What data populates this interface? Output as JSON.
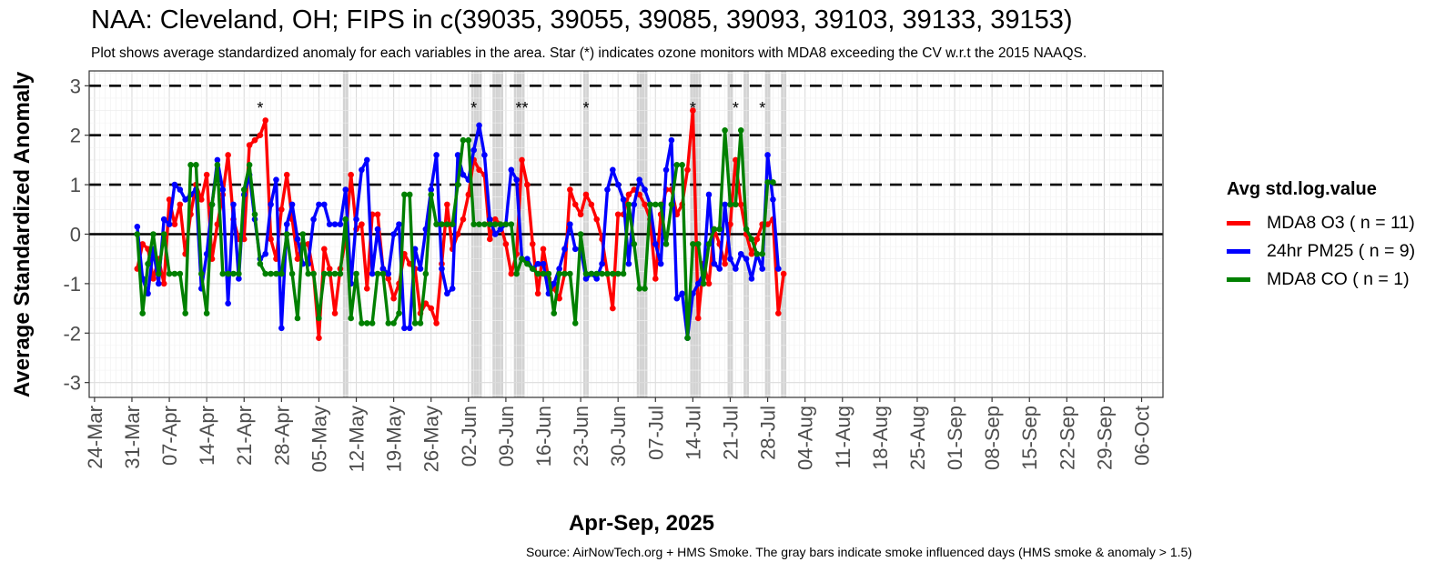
{
  "chart_data": {
    "type": "line",
    "title": "NAA: Cleveland, OH; FIPS in c(39035, 39055, 39085, 39093, 39103, 39133, 39153)",
    "subtitle": "Plot shows average standardized anomaly for each variables in the area. Star (*) indicates ozone monitors with MDA8 exceeding the CV w.r.t the 2015 NAAQS.",
    "xlabel": "Apr-Sep, 2025",
    "ylabel": "Average Standardized Anomaly",
    "caption": "Source: AirNowTech.org + HMS Smoke. The gray bars indicate smoke influenced days (HMS smoke & anomaly > 1.5)",
    "xlim": [
      "2025-03-23",
      "2025-10-10"
    ],
    "ylim": [
      -3.3,
      3.3
    ],
    "x_ticks": [
      "2025-03-24",
      "2025-03-31",
      "2025-04-07",
      "2025-04-14",
      "2025-04-21",
      "2025-04-28",
      "2025-05-05",
      "2025-05-12",
      "2025-05-19",
      "2025-05-26",
      "2025-06-02",
      "2025-06-09",
      "2025-06-16",
      "2025-06-23",
      "2025-06-30",
      "2025-07-07",
      "2025-07-14",
      "2025-07-21",
      "2025-07-28",
      "2025-08-04",
      "2025-08-11",
      "2025-08-18",
      "2025-08-25",
      "2025-09-01",
      "2025-09-08",
      "2025-09-15",
      "2025-09-22",
      "2025-09-29",
      "2025-10-06"
    ],
    "x_tick_labels": [
      "24-Mar",
      "31-Mar",
      "07-Apr",
      "14-Apr",
      "21-Apr",
      "28-Apr",
      "05-May",
      "12-May",
      "19-May",
      "26-May",
      "02-Jun",
      "09-Jun",
      "16-Jun",
      "23-Jun",
      "30-Jun",
      "07-Jul",
      "14-Jul",
      "21-Jul",
      "28-Jul",
      "04-Aug",
      "11-Aug",
      "18-Aug",
      "25-Aug",
      "01-Sep",
      "08-Sep",
      "15-Sep",
      "22-Sep",
      "29-Sep",
      "06-Oct"
    ],
    "y_ticks": [
      -3,
      -2,
      -1,
      0,
      1,
      2,
      3
    ],
    "dashed_lines": [
      1,
      2,
      3
    ],
    "zero_line": 0,
    "grid": true,
    "legend": {
      "title": "Avg std.log.value",
      "placement": "right"
    },
    "smoke_days": [
      "2025-05-10",
      "2025-06-03",
      "2025-06-04",
      "2025-06-07",
      "2025-06-08",
      "2025-06-11",
      "2025-06-12",
      "2025-06-24",
      "2025-07-04",
      "2025-07-05",
      "2025-07-14",
      "2025-07-15",
      "2025-07-21",
      "2025-07-24",
      "2025-07-28",
      "2025-07-31"
    ],
    "exceedance_stars": [
      {
        "date": "2025-04-24",
        "y": 2.55,
        "label": "*"
      },
      {
        "date": "2025-06-03",
        "y": 2.55,
        "label": "*"
      },
      {
        "date": "2025-06-12",
        "y": 2.55,
        "label": "**"
      },
      {
        "date": "2025-06-24",
        "y": 2.55,
        "label": "*"
      },
      {
        "date": "2025-07-14",
        "y": 2.55,
        "label": "*"
      },
      {
        "date": "2025-07-22",
        "y": 2.55,
        "label": "*"
      },
      {
        "date": "2025-07-27",
        "y": 2.55,
        "label": "*"
      }
    ],
    "series": [
      {
        "name": "MDA8 O3 ( n = 11)",
        "color": "#ff0000",
        "start_date": "2025-04-01",
        "values": [
          -0.7,
          -0.2,
          -0.3,
          -0.9,
          -0.5,
          -1.0,
          0.7,
          0.2,
          0.6,
          -0.4,
          0.4,
          1.0,
          0.7,
          1.2,
          -0.5,
          0.2,
          0.8,
          1.6,
          0.3,
          -0.1,
          -0.1,
          1.8,
          1.9,
          2.0,
          2.3,
          -0.1,
          -0.5,
          0.5,
          1.2,
          0.3,
          -0.5,
          -0.2,
          -0.2,
          -0.8,
          -2.1,
          -0.3,
          -0.7,
          -1.6,
          -0.7,
          -0.1,
          1.2,
          0.1,
          0.2,
          -1.1,
          0.4,
          0.4,
          -0.7,
          -0.9,
          -1.3,
          -1.0,
          -0.4,
          -0.6,
          -0.7,
          -1.6,
          -1.4,
          -1.5,
          -1.8,
          -0.6,
          0.6,
          -0.3,
          0.0,
          0.3,
          0.8,
          1.5,
          1.3,
          1.2,
          -0.1,
          0.3,
          0.2,
          -0.2,
          -0.8,
          -0.4,
          1.5,
          1.0,
          -0.2,
          -1.2,
          -0.3,
          -0.9,
          -1.1,
          -1.3,
          -0.8,
          0.9,
          0.6,
          0.4,
          0.8,
          0.6,
          0.3,
          -0.1,
          -0.8,
          -1.5,
          0.4,
          0.4,
          0.8,
          0.9,
          0.8,
          0.6,
          0.3,
          -0.9,
          0.4,
          0.9,
          0.9,
          0.4,
          0.6,
          1.3,
          2.5,
          -1.7,
          -0.6,
          -1.0,
          0.1,
          -0.2,
          -0.6,
          0.2,
          1.5,
          0.6,
          0.0,
          -0.4,
          -0.1,
          0.2,
          0.2,
          0.3,
          -1.6,
          -0.8
        ]
      },
      {
        "name": "24hr PM25 ( n = 9)",
        "color": "#0000ff",
        "start_date": "2025-04-01",
        "values": [
          0.15,
          -0.9,
          -1.2,
          -0.3,
          -1.0,
          0.3,
          0.2,
          1.0,
          0.9,
          0.7,
          0.8,
          0.9,
          -1.1,
          -0.4,
          0.6,
          1.5,
          0.9,
          -1.4,
          0.6,
          -0.9,
          0.8,
          1.2,
          0.3,
          -0.5,
          -0.4,
          0.6,
          1.1,
          -1.9,
          0.2,
          0.6,
          -0.1,
          -0.6,
          -0.6,
          0.3,
          0.6,
          0.6,
          0.2,
          0.2,
          0.2,
          0.9,
          -1.0,
          0.3,
          1.3,
          1.5,
          -0.8,
          0.1,
          -0.7,
          -0.8,
          0.0,
          0.2,
          -1.9,
          -1.9,
          -0.3,
          -0.7,
          0.1,
          0.9,
          1.6,
          -0.7,
          -1.2,
          -1.1,
          1.6,
          1.2,
          1.1,
          1.7,
          2.2,
          1.6,
          0.3,
          0.0,
          0.1,
          0.2,
          1.3,
          1.1,
          -0.5,
          -0.5,
          -0.7,
          -0.6,
          -0.6,
          -1.2,
          -1.0,
          -0.7,
          -0.3,
          0.2,
          -0.3,
          -0.3,
          -0.9,
          -0.8,
          -0.9,
          -0.6,
          0.9,
          1.3,
          1.0,
          0.7,
          -0.6,
          0.6,
          1.1,
          0.9,
          0.6,
          -0.2,
          -0.6,
          1.3,
          1.9,
          -1.3,
          -1.2,
          -2.1,
          -1.2,
          -1.0,
          -0.8,
          0.8,
          -0.6,
          -0.7,
          0.6,
          -0.5,
          -0.7,
          -0.4,
          -0.5,
          -0.9,
          -0.4,
          -0.7,
          1.6,
          0.7,
          -0.7
        ]
      },
      {
        "name": "MDA8 CO ( n = 1)",
        "color": "#008000",
        "start_date": "2025-04-01",
        "values": [
          0.0,
          -1.6,
          -0.6,
          0.0,
          -0.8,
          0.0,
          -0.8,
          -0.8,
          -0.8,
          -1.6,
          1.4,
          1.4,
          -0.8,
          -1.6,
          0.6,
          1.4,
          -0.8,
          -0.8,
          -0.8,
          -0.8,
          0.9,
          1.4,
          0.4,
          -0.6,
          -0.8,
          -0.8,
          -0.8,
          -0.8,
          0.0,
          -0.8,
          -1.7,
          0.0,
          -0.8,
          -0.8,
          -1.7,
          -0.8,
          -0.8,
          -0.8,
          -0.8,
          0.3,
          -1.7,
          -0.8,
          -1.8,
          -1.8,
          -1.8,
          -0.8,
          -0.8,
          -1.8,
          -1.8,
          -1.6,
          0.8,
          0.8,
          -1.8,
          -1.8,
          -0.8,
          0.8,
          0.2,
          0.2,
          0.2,
          0.2,
          1.0,
          1.9,
          1.9,
          0.2,
          0.2,
          0.2,
          0.2,
          0.2,
          0.2,
          0.2,
          0.2,
          -0.8,
          -0.5,
          -0.6,
          -0.7,
          -0.8,
          -0.8,
          -0.8,
          -1.6,
          -0.8,
          -0.8,
          -0.8,
          -1.8,
          0.0,
          -0.8,
          -0.8,
          -0.8,
          -0.8,
          -0.8,
          -0.8,
          -0.8,
          -0.8,
          0.6,
          -0.2,
          -1.1,
          -1.1,
          0.6,
          0.6,
          0.6,
          -0.2,
          0.6,
          1.4,
          1.4,
          -2.1,
          -0.2,
          -0.2,
          -1.0,
          -0.2,
          0.1,
          0.1,
          2.1,
          0.6,
          0.6,
          2.1,
          0.1,
          -0.1,
          -0.4,
          -0.4,
          1.05,
          1.05
        ]
      }
    ]
  }
}
